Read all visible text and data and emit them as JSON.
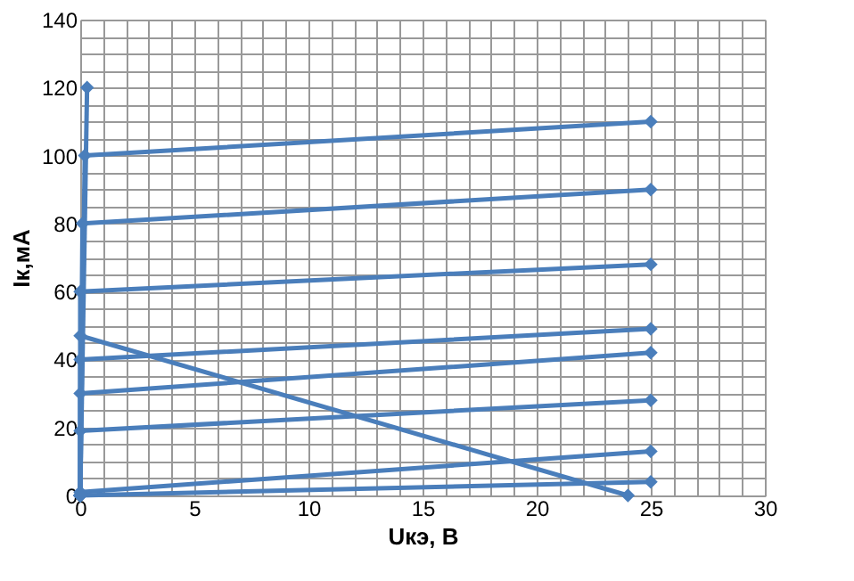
{
  "chart_data": {
    "type": "line",
    "xlabel": "Uкэ, В",
    "ylabel": "Iк,мА",
    "series": [
      {
        "color": "#4a7ebb",
        "x": [
          0,
          0.3
        ],
        "values": [
          0,
          120
        ]
      },
      {
        "color": "#4a7ebb",
        "x": [
          0,
          0.2,
          25
        ],
        "values": [
          0,
          100,
          110
        ]
      },
      {
        "color": "#4a7ebb",
        "x": [
          0,
          0.1,
          25
        ],
        "values": [
          0,
          80,
          90
        ]
      },
      {
        "color": "#4a7ebb",
        "x": [
          0,
          0,
          25
        ],
        "values": [
          0,
          60,
          68
        ]
      },
      {
        "color": "#4a7ebb",
        "x": [
          0,
          0,
          25
        ],
        "values": [
          0,
          40,
          49
        ]
      },
      {
        "color": "#4a7ebb",
        "x": [
          0,
          0,
          25
        ],
        "values": [
          0,
          30,
          42
        ]
      },
      {
        "color": "#4a7ebb",
        "x": [
          0,
          0,
          25
        ],
        "values": [
          0,
          19,
          28
        ]
      },
      {
        "color": "#4a7ebb",
        "x": [
          0,
          25
        ],
        "values": [
          1,
          13
        ]
      },
      {
        "color": "#4a7ebb",
        "x": [
          0,
          25
        ],
        "values": [
          0,
          4
        ]
      },
      {
        "color": "#4a7ebb",
        "x": [
          0,
          24
        ],
        "values": [
          47,
          0
        ]
      }
    ],
    "xlim": [
      0,
      30
    ],
    "ylim": [
      0,
      140
    ],
    "xticks": [
      0,
      {
        "value": 1,
        "label": null
      },
      {
        "value": 2,
        "label": null
      },
      {
        "value": 3,
        "label": null
      },
      {
        "value": 4,
        "label": null
      },
      5,
      {
        "value": 6,
        "label": null
      },
      {
        "value": 7,
        "label": null
      },
      {
        "value": 8,
        "label": null
      },
      {
        "value": 9,
        "label": null
      },
      10,
      {
        "value": 11,
        "label": null
      },
      {
        "value": 12,
        "label": null
      },
      {
        "value": 13,
        "label": null
      },
      {
        "value": 14,
        "label": null
      },
      15,
      {
        "value": 16,
        "label": null
      },
      {
        "value": 17,
        "label": null
      },
      {
        "value": 18,
        "label": null
      },
      {
        "value": 19,
        "label": null
      },
      20,
      {
        "value": 21,
        "label": null
      },
      {
        "value": 22,
        "label": null
      },
      {
        "value": 23,
        "label": null
      },
      {
        "value": 24,
        "label": null
      },
      25,
      {
        "value": 26,
        "label": null
      },
      {
        "value": 27,
        "label": null
      },
      {
        "value": 28,
        "label": null
      },
      {
        "value": 29,
        "label": null
      },
      30
    ],
    "yticks": [
      0,
      {
        "value": 5,
        "label": null
      },
      {
        "value": 10,
        "label": null
      },
      {
        "value": 15,
        "label": null
      },
      20,
      {
        "value": 25,
        "label": null
      },
      {
        "value": 30,
        "label": null
      },
      {
        "value": 35,
        "label": null
      },
      40,
      {
        "value": 45,
        "label": null
      },
      {
        "value": 50,
        "label": null
      },
      {
        "value": 55,
        "label": null
      },
      60,
      {
        "value": 65,
        "label": null
      },
      {
        "value": 70,
        "label": null
      },
      {
        "value": 75,
        "label": null
      },
      80,
      {
        "value": 85,
        "label": null
      },
      {
        "value": 90,
        "label": null
      },
      {
        "value": 95,
        "label": null
      },
      100,
      {
        "value": 105,
        "label": null
      },
      {
        "value": 110,
        "label": null
      },
      {
        "value": 115,
        "label": null
      },
      120,
      {
        "value": 125,
        "label": null
      },
      {
        "value": 130,
        "label": null
      },
      {
        "value": 135,
        "label": null
      },
      140
    ],
    "grid": true,
    "legend": false,
    "marker": "diamond",
    "line_style": "solid"
  }
}
